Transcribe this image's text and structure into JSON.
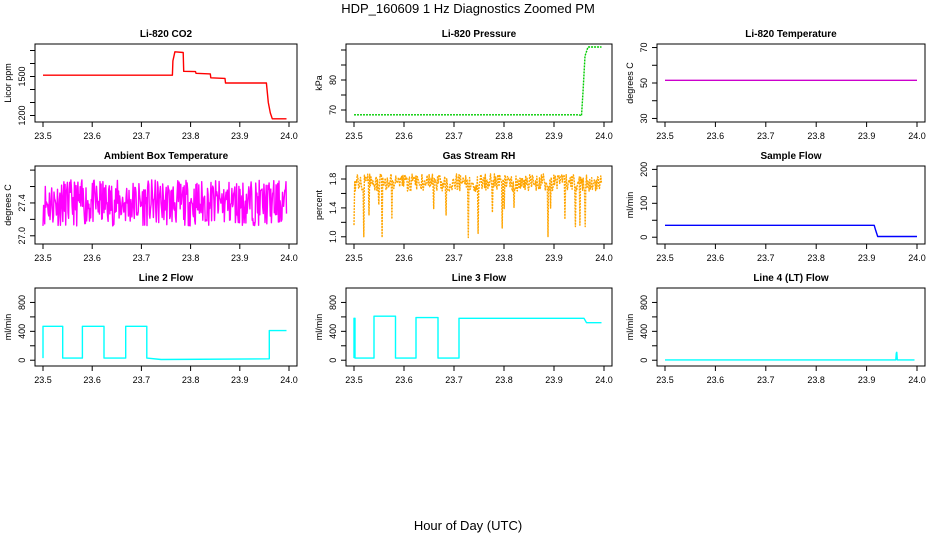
{
  "title": "HDP_160609  1 Hz Diagnostics Zoomed PM",
  "xlabel": "Hour of Day (UTC)",
  "chart_data": [
    {
      "type": "line",
      "title": "Li-820 CO2",
      "ylabel": "Licor ppm",
      "color": "#ff0000",
      "xlim": [
        23.5,
        24.0
      ],
      "ylim": [
        1150,
        1750
      ],
      "xticks": [
        23.5,
        23.6,
        23.7,
        23.8,
        23.9,
        24.0
      ],
      "yticks": [
        1200,
        1300,
        1400,
        1500,
        1600,
        1700
      ],
      "ytick_labels": [
        "1200",
        "",
        "",
        "1500",
        "",
        ""
      ],
      "series": [
        {
          "x": [
            23.5,
            23.763,
            23.764,
            23.768,
            23.785,
            23.786,
            23.81,
            23.811,
            23.84,
            23.841,
            23.87,
            23.871,
            23.954,
            23.958,
            23.962,
            23.966,
            23.995
          ],
          "y": [
            1510,
            1510,
            1620,
            1690,
            1685,
            1540,
            1538,
            1525,
            1520,
            1490,
            1485,
            1450,
            1450,
            1300,
            1220,
            1175,
            1175
          ]
        }
      ]
    },
    {
      "type": "line",
      "title": "Li-820 Pressure",
      "ylabel": "kPa",
      "color": "#00cc00",
      "xlim": [
        23.5,
        24.0
      ],
      "ylim": [
        66,
        92
      ],
      "xticks": [
        23.5,
        23.6,
        23.7,
        23.8,
        23.9,
        24.0
      ],
      "yticks": [
        70,
        75,
        80,
        85,
        90
      ],
      "ytick_labels": [
        "70",
        "",
        "80",
        "",
        ""
      ],
      "series": [
        {
          "x": [
            23.5,
            23.95,
            23.955,
            23.958,
            23.962,
            23.968,
            23.995
          ],
          "y": [
            68.4,
            68.4,
            68.1,
            76,
            88,
            91,
            91
          ]
        }
      ]
    },
    {
      "type": "line",
      "title": "Li-820 Temperature",
      "ylabel": "degrees C",
      "color": "#cc00cc",
      "xlim": [
        23.5,
        24.0
      ],
      "ylim": [
        28,
        72
      ],
      "xticks": [
        23.5,
        23.6,
        23.7,
        23.8,
        23.9,
        24.0
      ],
      "yticks": [
        30,
        40,
        50,
        60,
        70
      ],
      "ytick_labels": [
        "30",
        "",
        "50",
        "",
        "70"
      ],
      "series": [
        {
          "x": [
            23.5,
            24.0
          ],
          "y": [
            51.5,
            51.5
          ]
        }
      ]
    },
    {
      "type": "line",
      "title": "Ambient Box Temperature",
      "ylabel": "degrees C",
      "color": "#ff00ff",
      "xlim": [
        23.5,
        24.0
      ],
      "ylim": [
        26.9,
        27.85
      ],
      "xticks": [
        23.5,
        23.6,
        23.7,
        23.8,
        23.9,
        24.0
      ],
      "yticks": [
        27.0,
        27.2,
        27.4,
        27.6,
        27.8
      ],
      "ytick_labels": [
        "27.0",
        "",
        "27.4",
        "",
        ""
      ],
      "noise": {
        "base": 27.4,
        "spread": 0.28,
        "seed": 11,
        "n": 420
      }
    },
    {
      "type": "line",
      "title": "Gas Stream RH",
      "ylabel": "percent",
      "color": "#ffa500",
      "xlim": [
        23.5,
        24.0
      ],
      "ylim": [
        0.9,
        1.98
      ],
      "xticks": [
        23.5,
        23.6,
        23.7,
        23.8,
        23.9,
        24.0
      ],
      "yticks": [
        1.0,
        1.2,
        1.4,
        1.6,
        1.8
      ],
      "ytick_labels": [
        "1.0",
        "",
        "1.4",
        "",
        "1.8"
      ],
      "noise": {
        "base": 1.75,
        "spread": 0.12,
        "seed": 23,
        "n": 380,
        "dips": 0.07,
        "dipmin": 0.95
      }
    },
    {
      "type": "line",
      "title": "Sample Flow",
      "ylabel": "ml/min",
      "color": "#0000ff",
      "xlim": [
        23.5,
        24.0
      ],
      "ylim": [
        -20,
        210
      ],
      "xticks": [
        23.5,
        23.6,
        23.7,
        23.8,
        23.9,
        24.0
      ],
      "yticks": [
        0,
        50,
        100,
        150,
        200
      ],
      "ytick_labels": [
        "0",
        "",
        "100",
        "",
        "200"
      ],
      "series": [
        {
          "x": [
            23.5,
            23.915,
            23.918,
            23.922,
            24.0
          ],
          "y": [
            35,
            35,
            20,
            2,
            2
          ]
        }
      ]
    },
    {
      "type": "line",
      "title": "Line 2 Flow",
      "ylabel": "ml/min",
      "color": "#00ffff",
      "xlim": [
        23.5,
        24.0
      ],
      "ylim": [
        -80,
        1000
      ],
      "xticks": [
        23.5,
        23.6,
        23.7,
        23.8,
        23.9,
        24.0
      ],
      "yticks": [
        0,
        200,
        400,
        600,
        800
      ],
      "ytick_labels": [
        "0",
        "",
        "400",
        "",
        "800"
      ],
      "series": [
        {
          "x": [
            23.5,
            23.5,
            23.54,
            23.54,
            23.58,
            23.58,
            23.624,
            23.624,
            23.668,
            23.668,
            23.711,
            23.711,
            23.74,
            23.96,
            23.96,
            23.995
          ],
          "y": [
            30,
            470,
            470,
            30,
            30,
            470,
            470,
            30,
            30,
            470,
            470,
            30,
            10,
            20,
            410,
            410
          ]
        }
      ]
    },
    {
      "type": "line",
      "title": "Line 3 Flow",
      "ylabel": "ml/min",
      "color": "#00ffff",
      "xlim": [
        23.5,
        24.0
      ],
      "ylim": [
        -80,
        1000
      ],
      "xticks": [
        23.5,
        23.6,
        23.7,
        23.8,
        23.9,
        24.0
      ],
      "yticks": [
        0,
        200,
        400,
        600,
        800
      ],
      "ytick_labels": [
        "0",
        "",
        "400",
        "",
        "800"
      ],
      "series": [
        {
          "x": [
            23.5,
            23.5,
            23.502,
            23.502,
            23.54,
            23.54,
            23.583,
            23.583,
            23.624,
            23.624,
            23.668,
            23.668,
            23.71,
            23.71,
            23.96,
            23.965,
            23.995
          ],
          "y": [
            30,
            580,
            580,
            30,
            30,
            610,
            610,
            30,
            30,
            590,
            590,
            30,
            30,
            580,
            580,
            520,
            520
          ]
        }
      ]
    },
    {
      "type": "line",
      "title": "Line 4 (LT) Flow",
      "ylabel": "ml/min",
      "color": "#00ffff",
      "xlim": [
        23.5,
        24.0
      ],
      "ylim": [
        -80,
        1000
      ],
      "xticks": [
        23.5,
        23.6,
        23.7,
        23.8,
        23.9,
        24.0
      ],
      "yticks": [
        0,
        200,
        400,
        600,
        800
      ],
      "ytick_labels": [
        "0",
        "",
        "400",
        "",
        "800"
      ],
      "series": [
        {
          "x": [
            23.5,
            23.958,
            23.959,
            23.96,
            23.961,
            23.995
          ],
          "y": [
            5,
            5,
            100,
            110,
            5,
            5
          ]
        }
      ]
    }
  ]
}
